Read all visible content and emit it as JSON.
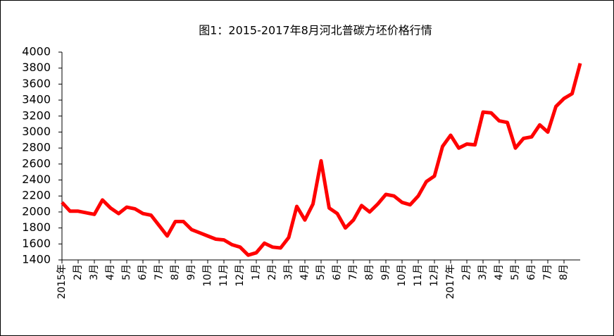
{
  "chart_data": {
    "type": "line",
    "title": "图1：2015-2017年8月河北普碳方坯价格行情",
    "x": [
      0,
      0.5,
      1,
      1.5,
      2,
      2.5,
      3,
      3.5,
      4,
      4.5,
      5,
      5.5,
      6,
      6.5,
      7,
      7.5,
      8,
      8.5,
      9,
      9.5,
      10,
      10.5,
      11,
      11.5,
      12,
      12.5,
      13,
      13.5,
      14,
      14.5,
      15,
      15.5,
      16,
      16.5,
      17,
      17.5,
      18,
      18.5,
      19,
      19.5,
      20,
      20.5,
      21,
      21.5,
      22,
      22.5,
      23,
      23.5,
      24,
      24.5,
      25,
      25.5,
      26,
      26.5,
      27,
      27.5,
      28,
      28.5,
      29,
      29.5,
      30,
      30.5,
      31,
      31.5,
      32
    ],
    "series": [
      {
        "color": "#ff0000",
        "values": [
          2120,
          2010,
          2010,
          1990,
          1970,
          2150,
          2050,
          1980,
          2060,
          2040,
          1980,
          1960,
          1830,
          1700,
          1880,
          1880,
          1780,
          1740,
          1700,
          1660,
          1650,
          1590,
          1560,
          1460,
          1490,
          1610,
          1560,
          1550,
          1680,
          2070,
          1900,
          2100,
          2640,
          2050,
          1980,
          1800,
          1900,
          2080,
          2000,
          2100,
          2220,
          2200,
          2120,
          2090,
          2200,
          2380,
          2450,
          2820,
          2960,
          2800,
          2850,
          2840,
          3250,
          3240,
          3140,
          3120,
          2800,
          2920,
          2940,
          3090,
          3000,
          3320,
          3420,
          3480,
          3860
        ]
      }
    ],
    "xlim": [
      0,
      32
    ],
    "xticks": [
      {
        "value": 0,
        "label": "2015年"
      },
      {
        "value": 1,
        "label": "2月"
      },
      {
        "value": 2,
        "label": "3月"
      },
      {
        "value": 3,
        "label": "4月"
      },
      {
        "value": 4,
        "label": "5月"
      },
      {
        "value": 5,
        "label": "6月"
      },
      {
        "value": 6,
        "label": "7月"
      },
      {
        "value": 7,
        "label": "8月"
      },
      {
        "value": 8,
        "label": "9月"
      },
      {
        "value": 9,
        "label": "10月"
      },
      {
        "value": 10,
        "label": "11月"
      },
      {
        "value": 11,
        "label": "12月"
      },
      {
        "value": 12,
        "label": "1月"
      },
      {
        "value": 13,
        "label": "2月"
      },
      {
        "value": 14,
        "label": "3月"
      },
      {
        "value": 15,
        "label": "4月"
      },
      {
        "value": 16,
        "label": "5月"
      },
      {
        "value": 17,
        "label": "6月"
      },
      {
        "value": 18,
        "label": "7月"
      },
      {
        "value": 19,
        "label": "8月"
      },
      {
        "value": 20,
        "label": "9月"
      },
      {
        "value": 21,
        "label": "10月"
      },
      {
        "value": 22,
        "label": "11月"
      },
      {
        "value": 23,
        "label": "12月"
      },
      {
        "value": 24,
        "label": "2017年"
      },
      {
        "value": 25,
        "label": "2月"
      },
      {
        "value": 26,
        "label": "3月"
      },
      {
        "value": 27,
        "label": "4月"
      },
      {
        "value": 28,
        "label": "5月"
      },
      {
        "value": 29,
        "label": "6月"
      },
      {
        "value": 30,
        "label": "7月"
      },
      {
        "value": 31,
        "label": "8月"
      }
    ],
    "ylim": [
      1400,
      4000
    ],
    "yticks": [
      1400,
      1600,
      1800,
      2000,
      2200,
      2400,
      2600,
      2800,
      3000,
      3200,
      3400,
      3600,
      3800,
      4000
    ]
  }
}
